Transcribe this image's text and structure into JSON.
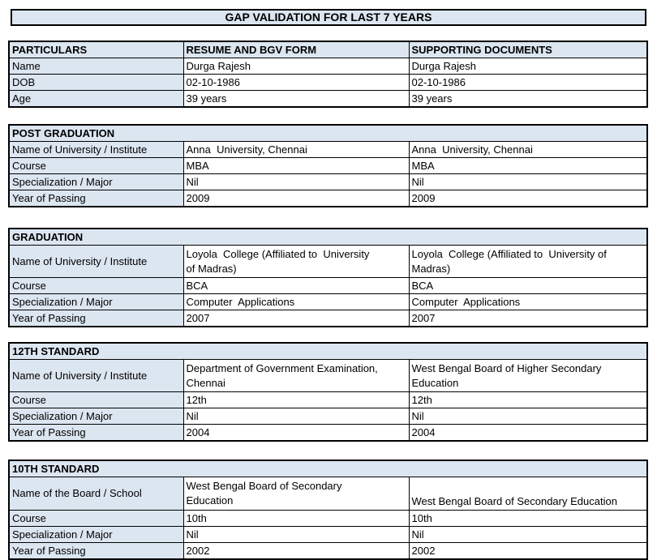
{
  "page_title": "GAP VALIDATION FOR LAST 7 YEARS",
  "colors": {
    "fill": "#dce6f1",
    "border": "#000000",
    "text": "#000000",
    "page_bg": "#ffffff"
  },
  "particulars": {
    "headers": [
      "PARTICULARS",
      "RESUME AND BGV FORM",
      "SUPPORTING DOCUMENTS"
    ],
    "rows": [
      {
        "label": "Name",
        "resume": "Durga Rajesh",
        "supporting": "Durga Rajesh"
      },
      {
        "label": "DOB",
        "resume": "02-10-1986",
        "supporting": "02-10-1986"
      },
      {
        "label": "Age",
        "resume": "39 years",
        "supporting": "39 years"
      }
    ]
  },
  "sections": [
    {
      "title": "POST GRADUATION",
      "rows": [
        {
          "label": "Name of University / Institute",
          "resume": "Anna  University, Chennai",
          "supporting": "Anna  University, Chennai"
        },
        {
          "label": "Course",
          "resume": "MBA",
          "supporting": "MBA"
        },
        {
          "label": "Specialization / Major",
          "resume": "Nil",
          "supporting": "Nil"
        },
        {
          "label": "Year of Passing",
          "resume": "2009",
          "supporting": "2009"
        }
      ]
    },
    {
      "title": "GRADUATION",
      "rows": [
        {
          "label": "Name of University / Institute",
          "resume": "Loyola  College (Affiliated to  University\nof Madras)",
          "supporting": "Loyola  College (Affiliated to  University of\nMadras)"
        },
        {
          "label": "Course",
          "resume": "BCA",
          "supporting": "BCA"
        },
        {
          "label": "Specialization / Major",
          "resume": "Computer  Applications",
          "supporting": "Computer  Applications"
        },
        {
          "label": "Year of Passing",
          "resume": "2007",
          "supporting": "2007"
        }
      ]
    },
    {
      "title": "12TH STANDARD",
      "rows": [
        {
          "label": "Name of University / Institute",
          "resume": "Department of Government Examination,\nChennai",
          "supporting": "West Bengal Board of Higher Secondary\nEducation"
        },
        {
          "label": "Course",
          "resume": "12th",
          "supporting": "12th"
        },
        {
          "label": "Specialization / Major",
          "resume": "Nil",
          "supporting": "Nil"
        },
        {
          "label": "Year of Passing",
          "resume": "2004",
          "supporting": "2004"
        }
      ]
    },
    {
      "title": "10TH STANDARD",
      "rows": [
        {
          "label": "Name of the Board / School",
          "resume": "West Bengal Board of Secondary\nEducation",
          "supporting": "West Bengal Board of Secondary Education"
        },
        {
          "label": "Course",
          "resume": "10th",
          "supporting": "10th"
        },
        {
          "label": "Specialization / Major",
          "resume": "Nil",
          "supporting": "Nil"
        },
        {
          "label": "Year of Passing",
          "resume": "2002",
          "supporting": "2002"
        }
      ]
    }
  ]
}
